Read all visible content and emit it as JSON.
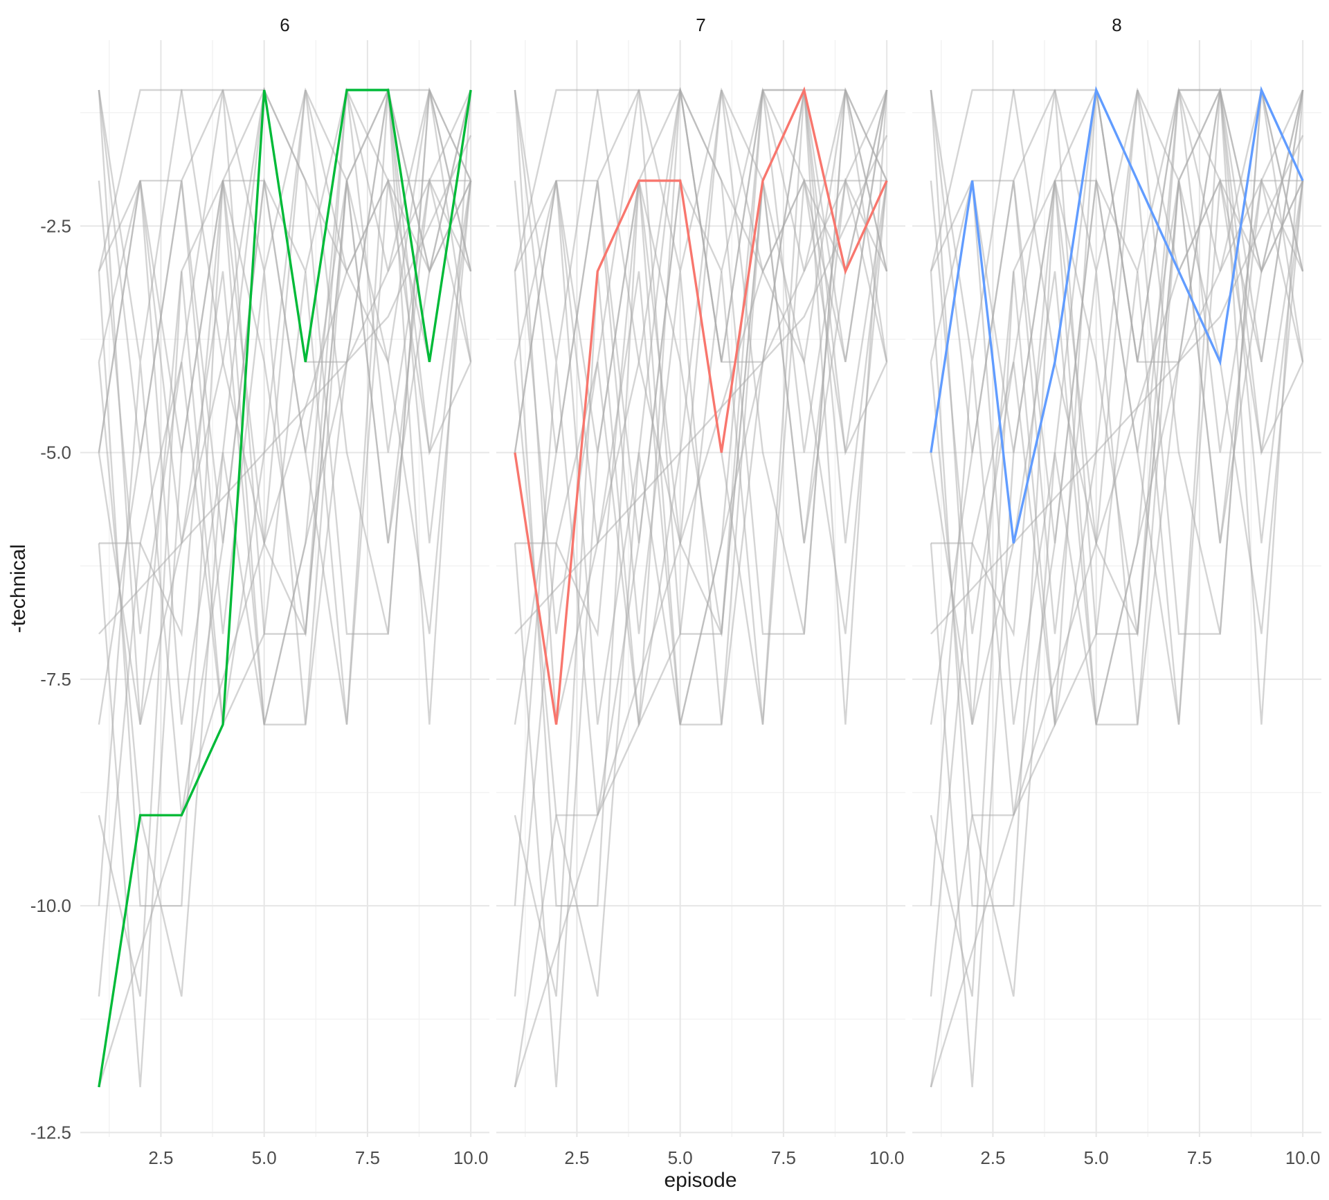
{
  "colors": {
    "background": "#FFFFFF",
    "grid_major": "#E6E6E6",
    "grid_minor": "#F2F2F2",
    "gray_line": "#A9A9A9",
    "tick_text": "#4D4D4D",
    "title_text": "#1A1A1A",
    "highlight_green": "#00BA38",
    "highlight_red": "#F8766D",
    "highlight_blue": "#619CFF"
  },
  "chart_data": {
    "type": "line",
    "title": "",
    "xlabel": "episode",
    "ylabel": "-technical",
    "legend": false,
    "grid": true,
    "x": [
      1,
      2,
      3,
      4,
      5,
      6,
      7,
      8,
      9,
      10
    ],
    "xlim": [
      0.55,
      10.45
    ],
    "ylim": [
      -12.55,
      -0.45
    ],
    "x_major_ticks": [
      2.5,
      5.0,
      7.5,
      10.0
    ],
    "x_tick_labels": [
      "2.5",
      "5.0",
      "7.5",
      "10.0"
    ],
    "x_minor_ticks": [
      1.25,
      3.75,
      6.25,
      8.75
    ],
    "y_major_ticks": [
      -2.5,
      -5.0,
      -7.5,
      -10.0,
      -12.5
    ],
    "y_tick_labels": [
      "-2.5",
      "-5.0",
      "-7.5",
      "-10.0",
      "-12.5"
    ],
    "y_minor_ticks": [
      -1.25,
      -3.75,
      -6.25,
      -8.75,
      -11.25
    ],
    "facet_labels": [
      "6",
      "7",
      "8"
    ],
    "facets": [
      {
        "label": "6",
        "series": {
          "name": "6",
          "color": "#00BA38",
          "values": [
            -12,
            -9,
            -9,
            -8,
            -1,
            -4,
            -1,
            -1,
            -4,
            -1
          ]
        }
      },
      {
        "label": "7",
        "series": {
          "name": "7",
          "color": "#F8766D",
          "values": [
            -5,
            -8,
            -3,
            -2,
            -2,
            -5,
            -2,
            -1,
            -3,
            -2
          ]
        }
      },
      {
        "label": "8",
        "series": {
          "name": "8",
          "color": "#619CFF",
          "values": [
            -5,
            -2,
            -6,
            -4,
            -1,
            -2,
            -3,
            -4,
            -1,
            -2
          ]
        }
      }
    ],
    "background_series": {
      "note": "unhighlighted episodes drawn in gray in every panel; values estimated from pixels",
      "color": "#A9A9A9",
      "values": [
        [
          -1,
          -4,
          -1,
          -1,
          -3,
          -1,
          -2,
          -1,
          -3,
          -1
        ],
        [
          -3,
          -2,
          -2,
          -1,
          -1,
          -4,
          -1,
          -2,
          -2,
          -2
        ],
        [
          -4,
          -2,
          -5,
          -2,
          -1,
          -4,
          -4,
          -1,
          -1,
          -3
        ],
        [
          -1,
          -5,
          -2,
          -6,
          -2,
          -3,
          -1,
          -5,
          -2,
          -1
        ],
        [
          -3,
          -1,
          -1,
          -4,
          -6,
          -1,
          -3,
          -2,
          -5,
          -2
        ],
        [
          -6,
          -6,
          -7,
          -2,
          -4,
          -7,
          -1,
          -3,
          -1,
          -2
        ],
        [
          -2,
          -7,
          -4,
          -1,
          -7,
          -7,
          -2,
          -6,
          -3,
          -1
        ],
        [
          -5,
          -2,
          -8,
          -5,
          -1,
          -2,
          -7,
          -7,
          -1,
          -4
        ],
        [
          -8,
          -5,
          -2,
          -7,
          -3,
          -8,
          -4,
          -1,
          -6,
          -2
        ],
        [
          -1,
          -8,
          -6,
          -3,
          -8,
          -8,
          -2,
          -6,
          -2,
          -3
        ],
        [
          -7,
          -6.5,
          -6,
          -5.5,
          -5,
          -4.5,
          -4,
          -3.5,
          -2.5,
          -1.5
        ],
        [
          -10,
          -4,
          -9,
          -6,
          -2,
          -5,
          -8,
          -2,
          -4,
          -1
        ],
        [
          -3,
          -10,
          -10,
          -2,
          -6,
          -7,
          -2,
          -4,
          -7,
          -2
        ],
        [
          -9,
          -11,
          -3,
          -8,
          -5,
          -1,
          -5,
          -7,
          -1,
          -3
        ],
        [
          -11,
          -6,
          -4,
          -8,
          -7,
          -3,
          -8,
          -1,
          -5,
          -4
        ],
        [
          -12,
          -10.5,
          -9,
          -7.5,
          -6,
          -4.5,
          -3,
          -2,
          -3,
          -2
        ],
        [
          -4,
          -9,
          -11,
          -5,
          -8,
          -6,
          -1,
          -1,
          -8,
          -1
        ],
        [
          -6,
          -12,
          -5,
          -2,
          -8,
          -6,
          -4,
          -3,
          -2,
          -4
        ]
      ]
    }
  }
}
